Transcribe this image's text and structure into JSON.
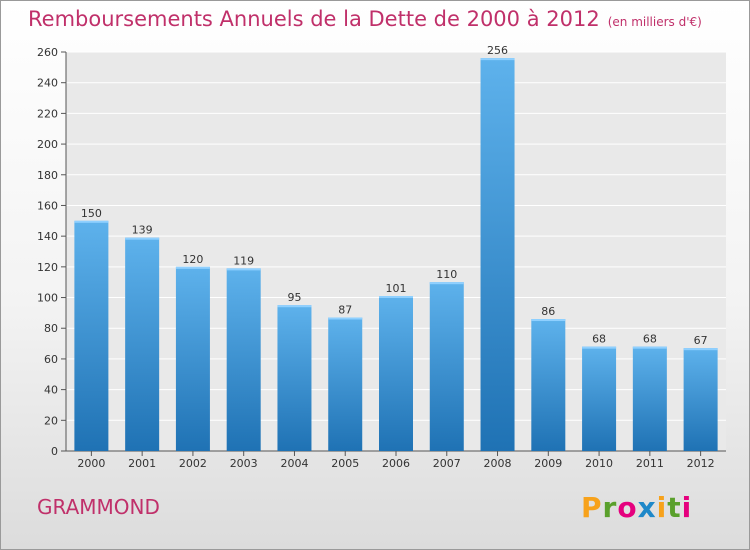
{
  "header": {
    "title": "Remboursements Annuels de la Dette de 2000 à 2012",
    "subtitle": "(en milliers d'€)"
  },
  "location": "GRAMMOND",
  "logo": {
    "text": "Proxiti",
    "colors": [
      "#f7a21b",
      "#5aa02c",
      "#e5007e",
      "#1e88c9",
      "#f7a21b",
      "#5aa02c",
      "#e5007e"
    ]
  },
  "colors": {
    "bar_light": "#5eb2ec",
    "bar_dark": "#1f72b4",
    "title": "#c0306a"
  },
  "chart_data": {
    "type": "bar",
    "title": "Remboursements Annuels de la Dette de 2000 à 2012",
    "subtitle": "(en milliers d'€)",
    "categories": [
      "2000",
      "2001",
      "2002",
      "2003",
      "2004",
      "2005",
      "2006",
      "2007",
      "2008",
      "2009",
      "2010",
      "2011",
      "2012"
    ],
    "values": [
      150,
      139,
      120,
      119,
      95,
      87,
      101,
      110,
      256,
      86,
      68,
      68,
      67
    ],
    "ylim": [
      0,
      260
    ],
    "yticks": [
      0,
      20,
      40,
      60,
      80,
      100,
      120,
      140,
      160,
      180,
      200,
      220,
      240,
      260
    ],
    "grid": true,
    "xlabel": "",
    "ylabel": ""
  }
}
